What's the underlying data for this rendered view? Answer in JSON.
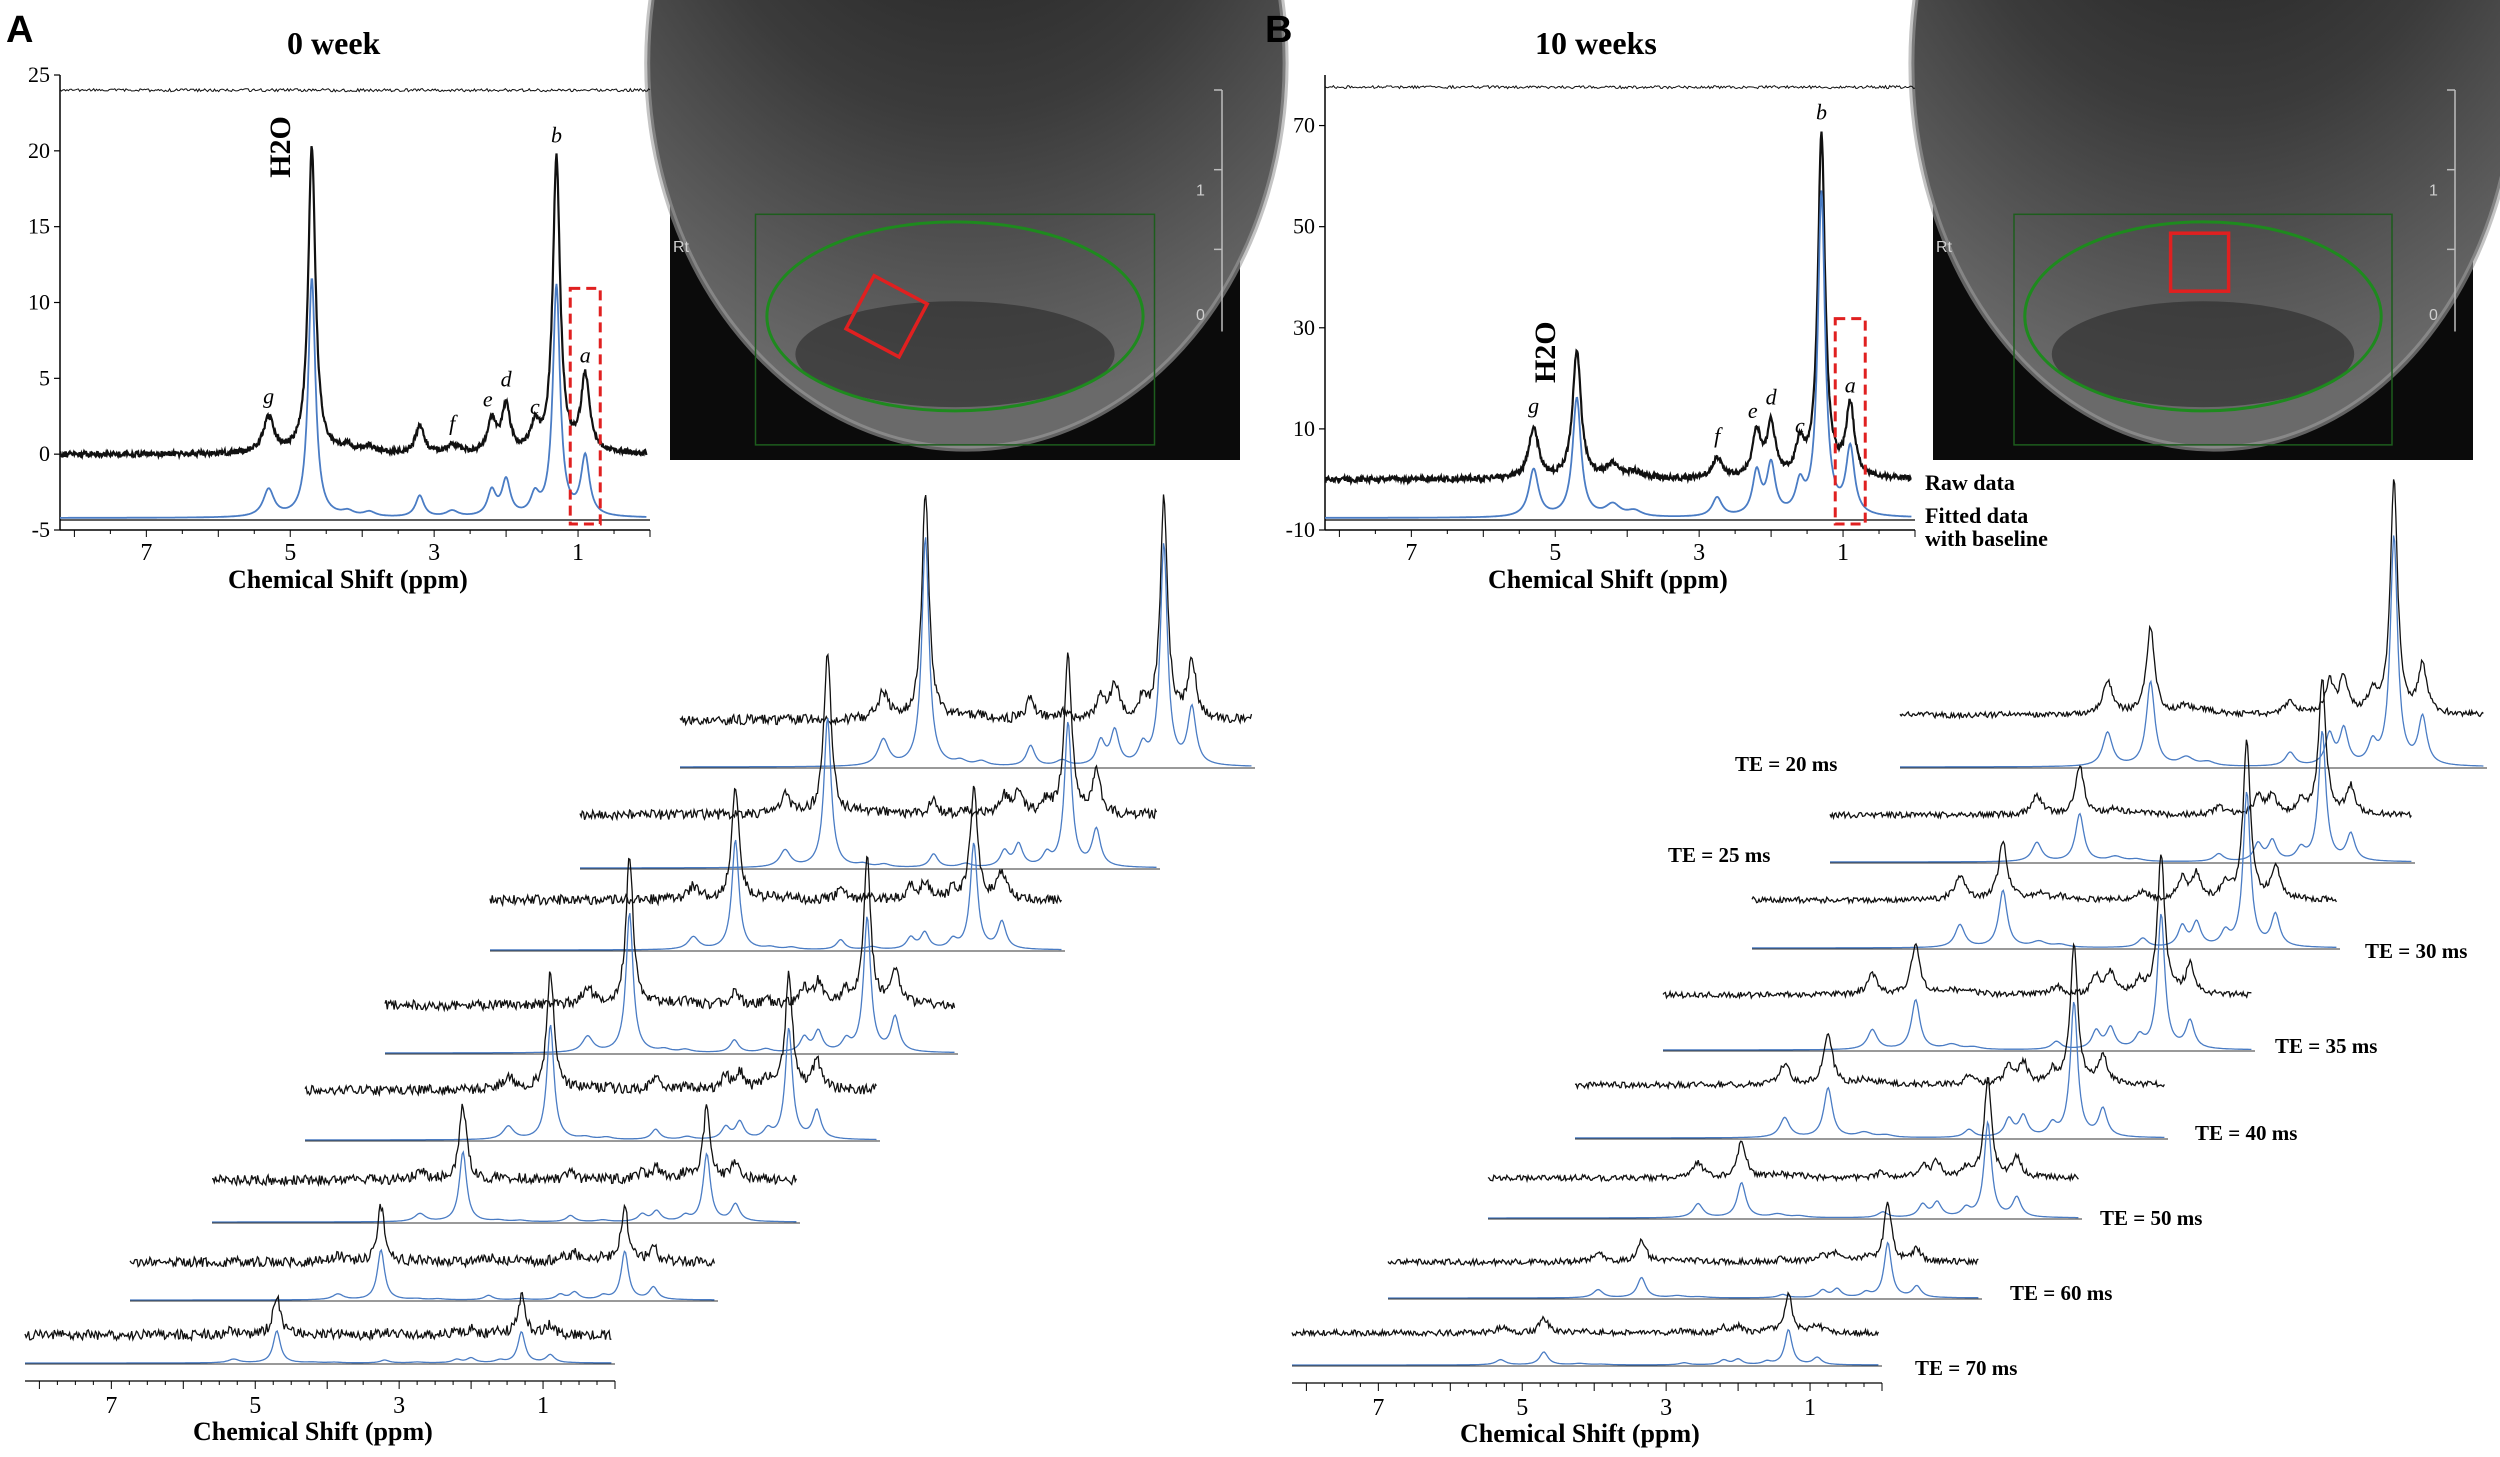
{
  "chart_data": [
    {
      "type": "line",
      "panel": "A",
      "title": "0 week",
      "xlabel": "Chemical Shift (ppm)",
      "x_axis": "ppm, decreasing left to right",
      "xlim": [
        8.2,
        0
      ],
      "xticks": [
        "7",
        "5",
        "3",
        "1"
      ],
      "ylim": [
        -5,
        25
      ],
      "yticks": [
        "25",
        "20",
        "15",
        "10",
        "5",
        "0",
        "-5"
      ],
      "series": [],
      "peaks": [
        {
          "label": "g",
          "ppm": 5.3,
          "raw_height": 2.3,
          "width": 0.09
        },
        {
          "label": "H2O",
          "ppm": 4.7,
          "raw_height": 20.2,
          "width": 0.06
        },
        {
          "label": "",
          "ppm": 4.2,
          "raw_height": 0.4,
          "width": 0.1
        },
        {
          "label": "",
          "ppm": 3.9,
          "raw_height": 0.4,
          "width": 0.1
        },
        {
          "label": "",
          "ppm": 3.2,
          "raw_height": 1.8,
          "width": 0.07
        },
        {
          "label": "f",
          "ppm": 2.75,
          "raw_height": 0.5,
          "width": 0.1
        },
        {
          "label": "e",
          "ppm": 2.2,
          "raw_height": 2.1,
          "width": 0.07
        },
        {
          "label": "d",
          "ppm": 2.0,
          "raw_height": 3.0,
          "width": 0.07
        },
        {
          "label": "c",
          "ppm": 1.6,
          "raw_height": 1.6,
          "width": 0.07
        },
        {
          "label": "b",
          "ppm": 1.3,
          "raw_height": 19.5,
          "width": 0.06
        },
        {
          "label": "a",
          "ppm": 0.9,
          "raw_height": 5.0,
          "width": 0.07
        }
      ],
      "peak_labels": [
        {
          "key": "g",
          "text": "g"
        },
        {
          "key": "f",
          "text": "f"
        },
        {
          "key": "e",
          "text": "e"
        },
        {
          "key": "d",
          "text": "d"
        },
        {
          "key": "c",
          "text": "c"
        },
        {
          "key": "b",
          "text": "b"
        },
        {
          "key": "a",
          "text": "a"
        }
      ],
      "h2o_label": "H2O",
      "stack_xlabel": "Chemical Shift (ppm)",
      "stack_xticks": [
        "7",
        "5",
        "3",
        "1"
      ],
      "stack_count": 8,
      "stack_te_labels": []
    },
    {
      "type": "line",
      "panel": "B",
      "title": "10 weeks",
      "xlabel": "Chemical Shift (ppm)",
      "x_axis": "ppm, decreasing left to right",
      "xlim": [
        8.2,
        0
      ],
      "xticks": [
        "7",
        "5",
        "3",
        "1"
      ],
      "ylim": [
        -10,
        80
      ],
      "yticks": [
        "70",
        "50",
        "30",
        "10",
        "-10"
      ],
      "series": [
        "Raw data",
        "Fitted data with baseline"
      ],
      "peaks": [
        {
          "label": "g",
          "ppm": 5.3,
          "raw_height": 10,
          "width": 0.08
        },
        {
          "label": "H2O",
          "ppm": 4.7,
          "raw_height": 25,
          "width": 0.07
        },
        {
          "label": "",
          "ppm": 4.2,
          "raw_height": 2.5,
          "width": 0.12
        },
        {
          "label": "",
          "ppm": 3.9,
          "raw_height": 1.2,
          "width": 0.12
        },
        {
          "label": "f",
          "ppm": 2.75,
          "raw_height": 4,
          "width": 0.08
        },
        {
          "label": "e",
          "ppm": 2.2,
          "raw_height": 9,
          "width": 0.07
        },
        {
          "label": "d",
          "ppm": 2.0,
          "raw_height": 10.5,
          "width": 0.07
        },
        {
          "label": "c",
          "ppm": 1.6,
          "raw_height": 6,
          "width": 0.07
        },
        {
          "label": "b",
          "ppm": 1.3,
          "raw_height": 68,
          "width": 0.06
        },
        {
          "label": "a",
          "ppm": 0.9,
          "raw_height": 14,
          "width": 0.07
        }
      ],
      "peak_labels": [
        {
          "key": "g",
          "text": "g"
        },
        {
          "key": "f",
          "text": "f"
        },
        {
          "key": "e",
          "text": "e"
        },
        {
          "key": "d",
          "text": "d"
        },
        {
          "key": "c",
          "text": "c"
        },
        {
          "key": "b",
          "text": "b"
        },
        {
          "key": "a",
          "text": "a"
        }
      ],
      "h2o_label": "H2O",
      "stack_xlabel": "Chemical Shift (ppm)",
      "stack_xticks": [
        "7",
        "5",
        "3",
        "1"
      ],
      "stack_count": 8,
      "stack_te_labels": [
        "TE = 20 ms",
        "TE = 25 ms",
        "TE = 30 ms",
        "TE = 35 ms",
        "TE = 40 ms",
        "TE = 50 ms",
        "TE = 60 ms",
        "TE = 70 ms"
      ]
    }
  ],
  "figure": {
    "panel_a_letter": "A",
    "panel_b_letter": "B"
  },
  "mri_images": [
    {
      "side_label": "Rt",
      "scale_top": "1",
      "scale_bottom": "0",
      "roi_color": "#e02020",
      "ellipse_color": "#1e8a1e"
    },
    {
      "side_label": "Rt",
      "scale_top": "1",
      "scale_bottom": "0",
      "roi_color": "#e02020",
      "ellipse_color": "#1e8a1e"
    }
  ],
  "colors": {
    "raw": "#111111",
    "fit": "#4a7cc4",
    "highlight_box": "#e02020"
  }
}
